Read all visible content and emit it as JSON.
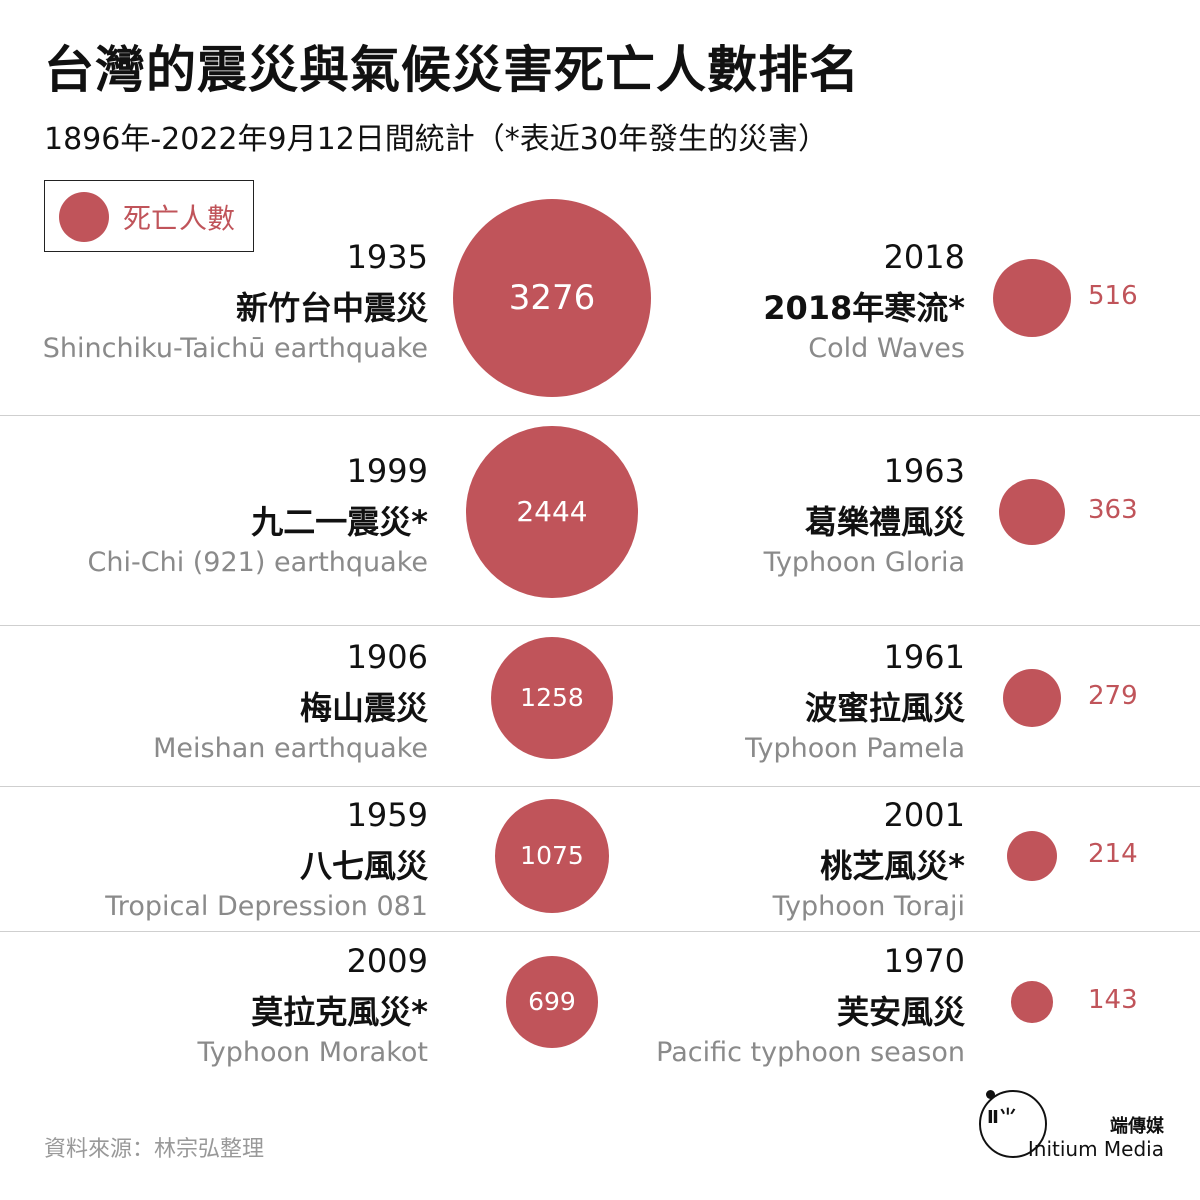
{
  "title": "台灣的震災與氣候災害死亡人數排名",
  "subtitle": "1896年-2022年9月12日間統計（*表近30年發生的災害）",
  "legend": {
    "label": "死亡人數"
  },
  "colors": {
    "bubble": "#c0545a",
    "text": "#111111",
    "muted": "#8a8a8a",
    "divider": "#cfcfcf"
  },
  "chart_data": {
    "type": "bubble",
    "measure": "死亡人數",
    "left": [
      {
        "year": "1935",
        "name_zh": "新竹台中震災",
        "name_en": "Shinchiku-Taichū earthquake",
        "deaths": 3276,
        "label": "3276"
      },
      {
        "year": "1999",
        "name_zh": "九二一震災*",
        "name_en": "Chi-Chi (921) earthquake",
        "deaths": 2444,
        "label": "2444"
      },
      {
        "year": "1906",
        "name_zh": "梅山震災",
        "name_en": "Meishan earthquake",
        "deaths": 1258,
        "label": "1258"
      },
      {
        "year": "1959",
        "name_zh": "八七風災",
        "name_en": "Tropical Depression 081",
        "deaths": 1075,
        "label": "1075"
      },
      {
        "year": "2009",
        "name_zh": "莫拉克風災*",
        "name_en": "Typhoon Morakot",
        "deaths": 699,
        "label": "699"
      }
    ],
    "right": [
      {
        "year": "2018",
        "name_zh": "2018年寒流*",
        "name_en": "Cold Waves",
        "deaths": 516,
        "label": "516"
      },
      {
        "year": "1963",
        "name_zh": "葛樂禮風災",
        "name_en": "Typhoon Gloria",
        "deaths": 363,
        "label": "363"
      },
      {
        "year": "1961",
        "name_zh": "波蜜拉風災",
        "name_en": "Typhoon Pamela",
        "deaths": 279,
        "label": "279"
      },
      {
        "year": "2001",
        "name_zh": "桃芝風災*",
        "name_en": "Typhoon Toraji",
        "deaths": 214,
        "label": "214"
      },
      {
        "year": "1970",
        "name_zh": "芙安風災",
        "name_en": "Pacific typhoon season",
        "deaths": 143,
        "label": "143"
      }
    ]
  },
  "footer": {
    "source": "資料來源：林宗弘整理",
    "logo_mark": "Ⅱ⺌",
    "brand_zh": "端傳媒",
    "brand_en": "Initium Media"
  }
}
